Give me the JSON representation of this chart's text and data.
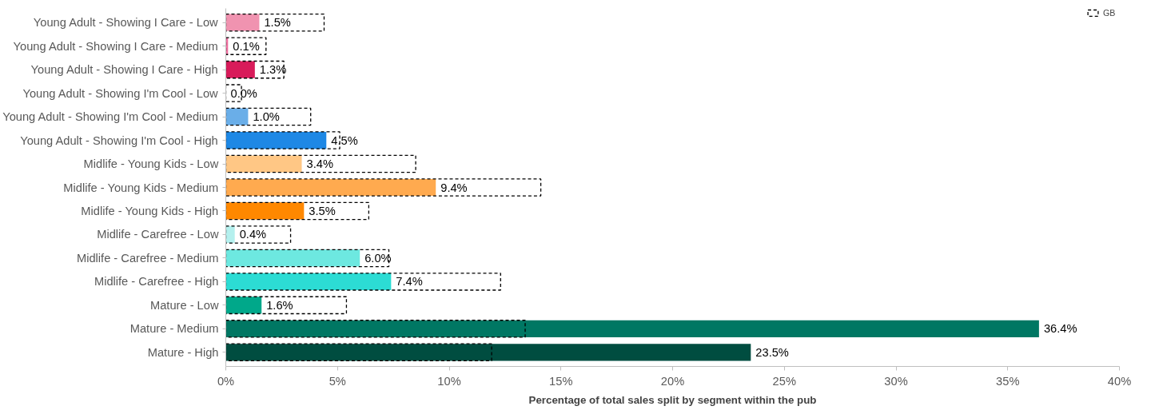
{
  "chart_data": {
    "type": "bar",
    "orientation": "horizontal",
    "xlabel": "Percentage of total sales split by segment within the pub",
    "categories": [
      "Young Adult - Showing I Care - Low",
      "Young Adult - Showing I Care - Medium",
      "Young Adult - Showing I Care - High",
      "Young Adult - Showing I'm Cool - Low",
      "Young Adult - Showing I'm Cool - Medium",
      "Young Adult - Showing I'm Cool - High",
      "Midlife - Young Kids - Low",
      "Midlife - Young Kids - Medium",
      "Midlife - Young Kids - High",
      "Midlife - Carefree - Low",
      "Midlife - Carefree - Medium",
      "Midlife - Carefree - High",
      "Mature - Low",
      "Mature - Medium",
      "Mature - High"
    ],
    "series": [
      {
        "colors": [
          "#f093b0",
          "#f06fa0",
          "#d81b5a",
          "#ffffff",
          "#6aaee8",
          "#1e88e5",
          "#ffc785",
          "#ffaa4f",
          "#ff8800",
          "#b4f0ee",
          "#6de8e0",
          "#2cdcd4",
          "#00a88a",
          "#007763",
          "#004d40"
        ],
        "values": [
          1.5,
          0.1,
          1.3,
          0.0,
          1.0,
          4.5,
          3.4,
          9.4,
          3.5,
          0.4,
          6.0,
          7.4,
          1.6,
          36.4,
          23.5
        ],
        "value_labels": [
          "1.5%",
          "0.1%",
          "1.3%",
          "0.0%",
          "1.0%",
          "4.5%",
          "3.4%",
          "9.4%",
          "3.5%",
          "0.4%",
          "6.0%",
          "7.4%",
          "1.6%",
          "36.4%",
          "23.5%"
        ]
      },
      {
        "name": "GB",
        "color": "#000000",
        "line_style": "dashed",
        "values": [
          4.4,
          1.8,
          2.6,
          0.7,
          3.8,
          5.1,
          8.5,
          14.1,
          6.4,
          2.9,
          7.3,
          12.3,
          5.4,
          13.4,
          11.9
        ]
      }
    ],
    "xlim": [
      0,
      40
    ],
    "xticks": [
      {
        "value": 0,
        "label": "0%"
      },
      {
        "value": 5,
        "label": "5%"
      },
      {
        "value": 10,
        "label": "10%"
      },
      {
        "value": 15,
        "label": "15%"
      },
      {
        "value": 20,
        "label": "20%"
      },
      {
        "value": 25,
        "label": "25%"
      },
      {
        "value": 30,
        "label": "30%"
      },
      {
        "value": 35,
        "label": "35%"
      },
      {
        "value": 40,
        "label": "40%"
      }
    ],
    "grid": false,
    "legend": "top right"
  }
}
